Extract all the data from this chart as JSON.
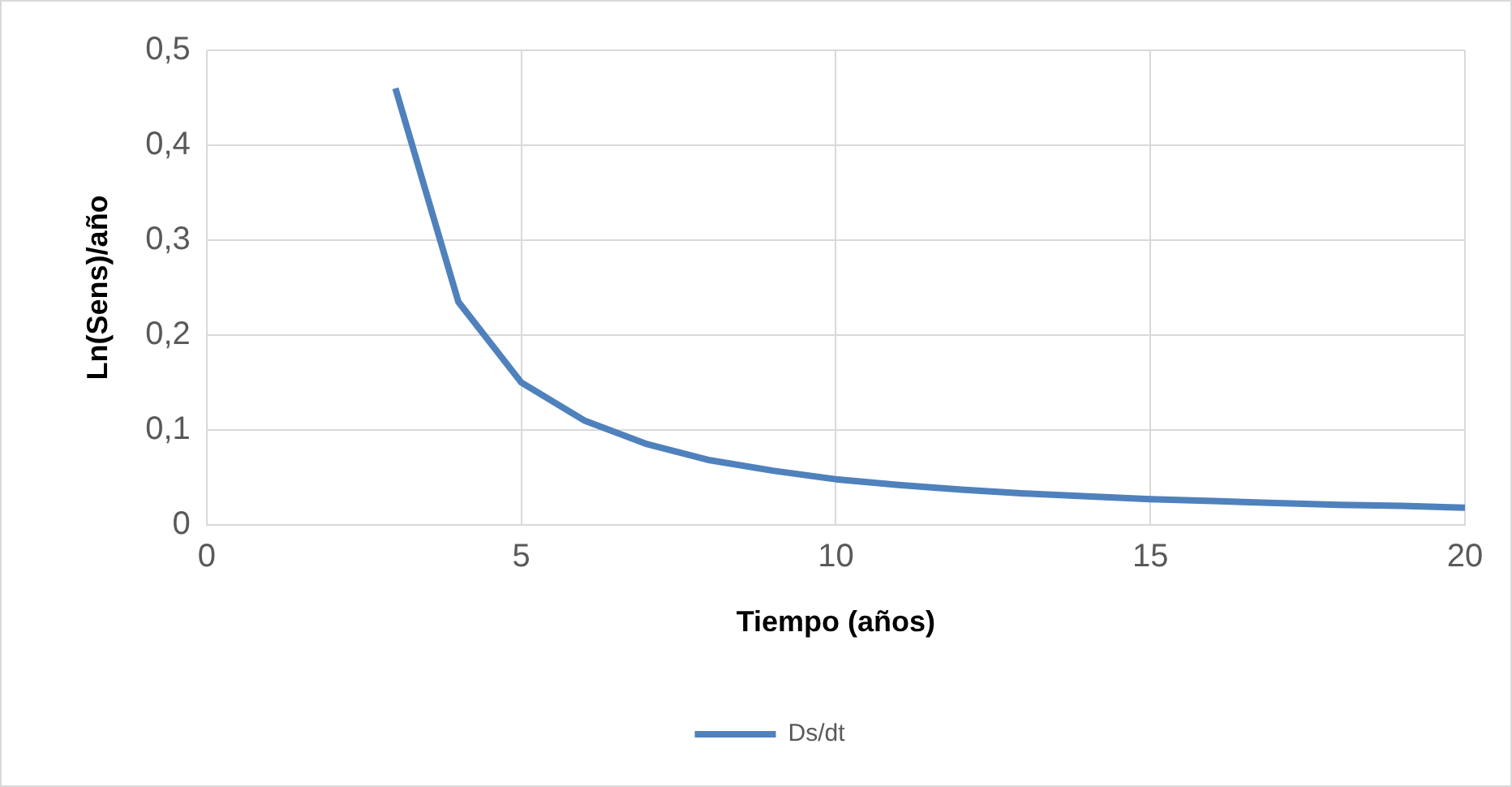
{
  "chart_data": {
    "type": "line",
    "xlabel": "Tiempo (años)",
    "ylabel": "Ln(Sens)/año",
    "x": [
      3,
      4,
      5,
      6,
      7,
      8,
      9,
      10,
      11,
      12,
      13,
      14,
      15,
      16,
      17,
      18,
      19,
      20
    ],
    "series": [
      {
        "name": "Ds/dt",
        "color": "#4f81bd",
        "values": [
          0.46,
          0.235,
          0.15,
          0.11,
          0.085,
          0.068,
          0.057,
          0.048,
          0.042,
          0.037,
          0.033,
          0.03,
          0.027,
          0.025,
          0.023,
          0.021,
          0.02,
          0.018
        ]
      }
    ],
    "xlim": [
      0,
      20
    ],
    "xticks": [
      0,
      5,
      10,
      15,
      20
    ],
    "ylim": [
      0,
      0.5
    ],
    "yticks": [
      {
        "value": 0,
        "label": "0"
      },
      {
        "value": 0.1,
        "label": "0,1"
      },
      {
        "value": 0.2,
        "label": "0,2"
      },
      {
        "value": 0.3,
        "label": "0,3"
      },
      {
        "value": 0.4,
        "label": "0,4"
      },
      {
        "value": 0.5,
        "label": "0,5"
      }
    ],
    "grid": true,
    "legend": "bottom",
    "marker": "none",
    "line_style": "solid"
  }
}
